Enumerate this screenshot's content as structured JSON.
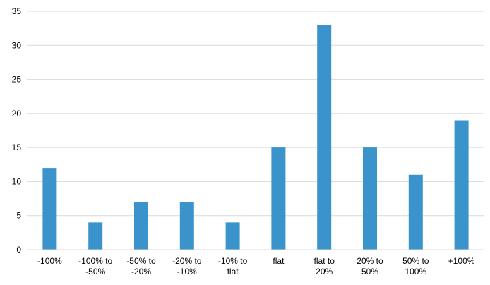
{
  "chart_data": {
    "type": "bar",
    "title": "",
    "xlabel": "",
    "ylabel": "",
    "categories": [
      [
        "-100%"
      ],
      [
        "-100% to",
        "-50%"
      ],
      [
        "-50% to",
        "-20%"
      ],
      [
        "-20% to",
        "-10%"
      ],
      [
        "-10% to",
        "flat"
      ],
      [
        "flat"
      ],
      [
        "flat to",
        "20%"
      ],
      [
        "20% to",
        "50%"
      ],
      [
        "50% to",
        "100%"
      ],
      [
        "+100%"
      ]
    ],
    "values": [
      12,
      4,
      7,
      7,
      4,
      15,
      33,
      15,
      11,
      19
    ],
    "ylim": [
      0,
      35
    ],
    "yticks": [
      0,
      5,
      10,
      15,
      20,
      25,
      30,
      35
    ],
    "grid": true,
    "legend": "none",
    "bar_color": "#3a93cb"
  }
}
